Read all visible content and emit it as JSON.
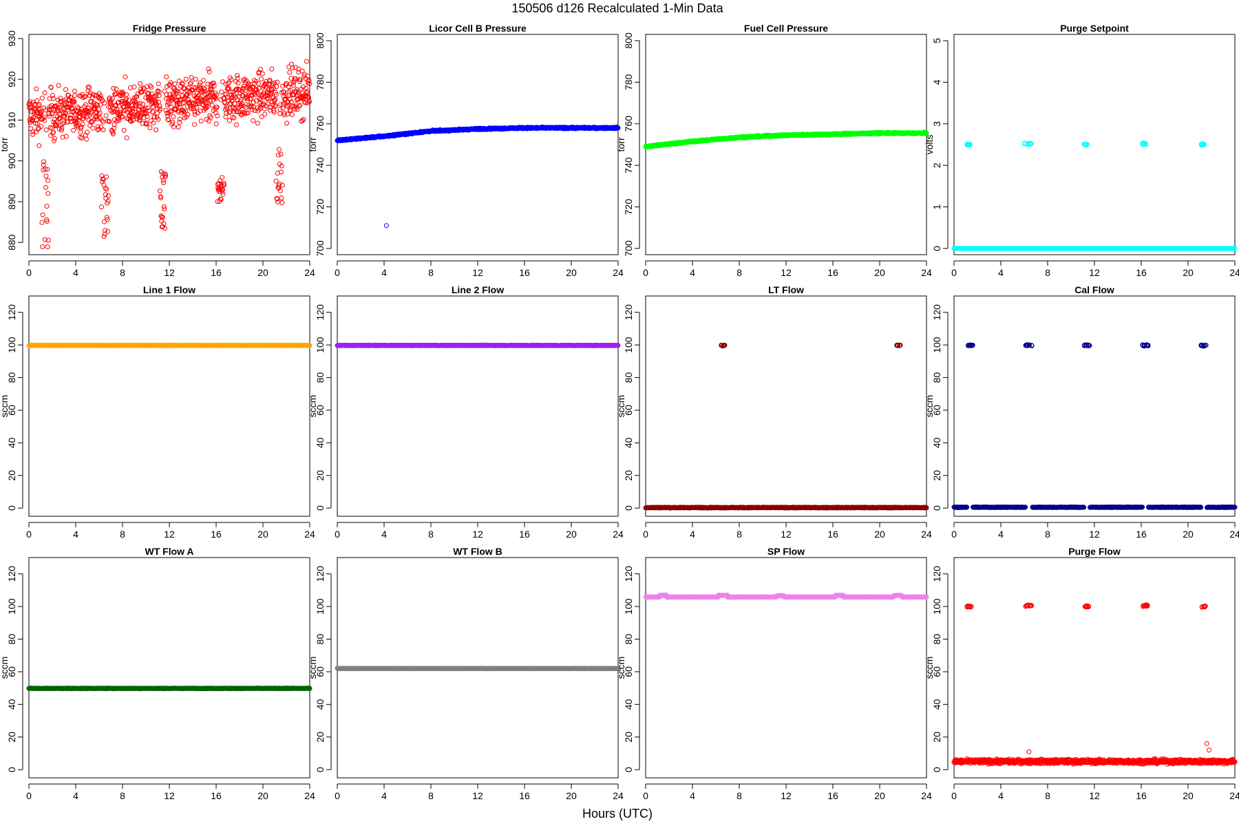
{
  "figure": {
    "title": "150506   d126   Recalculated 1-Min Data",
    "xlabel": "Hours (UTC)"
  },
  "chart_data": [
    {
      "type": "scatter",
      "title": "Fridge Pressure",
      "ylabel": "torr",
      "color": "#ff0000",
      "xlim": [
        0,
        24
      ],
      "ylim": [
        877,
        931
      ],
      "xticks": [
        0,
        4,
        8,
        12,
        16,
        20,
        24
      ],
      "yticks": [
        880,
        890,
        900,
        910,
        920,
        930
      ],
      "pattern": "noise",
      "base_start": 911,
      "base_end": 917,
      "noise": 7,
      "events": [
        {
          "x": [
            1.1,
            1.7
          ],
          "y": [
            878,
            900
          ]
        },
        {
          "x": [
            6.2,
            6.8
          ],
          "y": [
            881,
            897
          ]
        },
        {
          "x": [
            11.2,
            11.7
          ],
          "y": [
            882,
            899
          ]
        },
        {
          "x": [
            16.1,
            16.7
          ],
          "y": [
            890,
            896
          ]
        },
        {
          "x": [
            21.1,
            21.7
          ],
          "y": [
            888,
            904
          ]
        }
      ]
    },
    {
      "type": "scatter",
      "title": "Licor Cell B Pressure",
      "ylabel": "torr",
      "color": "#0000ff",
      "xlim": [
        0,
        24
      ],
      "ylim": [
        697,
        803
      ],
      "xticks": [
        0,
        4,
        8,
        12,
        16,
        20,
        24
      ],
      "yticks": [
        700,
        720,
        740,
        760,
        780,
        800
      ],
      "pattern": "curve",
      "curve": {
        "x": [
          0,
          4,
          8,
          12,
          16,
          20,
          24
        ],
        "y": [
          752,
          754,
          756.5,
          757.5,
          758,
          758,
          758
        ]
      },
      "noise": 0.6,
      "outliers": [
        {
          "x": 4.2,
          "y": 711
        }
      ]
    },
    {
      "type": "scatter",
      "title": "Fuel Cell Pressure",
      "ylabel": "torr",
      "color": "#00ff00",
      "xlim": [
        0,
        24
      ],
      "ylim": [
        697,
        803
      ],
      "xticks": [
        0,
        4,
        8,
        12,
        16,
        20,
        24
      ],
      "yticks": [
        700,
        720,
        740,
        760,
        780,
        800
      ],
      "pattern": "curve",
      "curve": {
        "x": [
          0,
          4,
          8,
          12,
          16,
          20,
          24
        ],
        "y": [
          749,
          751.5,
          753.5,
          754.5,
          755,
          755.5,
          755.5
        ]
      },
      "noise": 0.6
    },
    {
      "type": "scatter",
      "title": "Purge Setpoint",
      "ylabel": "volts",
      "color": "#00ffff",
      "xlim": [
        0,
        24
      ],
      "ylim": [
        -0.15,
        5.15
      ],
      "xticks": [
        0,
        4,
        8,
        12,
        16,
        20,
        24
      ],
      "yticks": [
        0,
        1,
        2,
        3,
        4,
        5
      ],
      "pattern": "baseline",
      "base": 0,
      "noise": 0,
      "clusters": [
        {
          "x": [
            1.1,
            1.4
          ],
          "y": 2.5
        },
        {
          "x": [
            6.0,
            6.6
          ],
          "y": 2.52
        },
        {
          "x": [
            11.1,
            11.4
          ],
          "y": 2.5
        },
        {
          "x": [
            16.1,
            16.6
          ],
          "y": 2.52
        },
        {
          "x": [
            21.1,
            21.4
          ],
          "y": 2.5
        }
      ]
    },
    {
      "type": "scatter",
      "title": "Line 1 Flow",
      "ylabel": "sccm",
      "color": "#ffa500",
      "xlim": [
        0,
        24
      ],
      "ylim": [
        -5,
        130
      ],
      "xticks": [
        0,
        4,
        8,
        12,
        16,
        20,
        24
      ],
      "yticks": [
        0,
        20,
        40,
        60,
        80,
        100,
        120
      ],
      "pattern": "baseline",
      "base": 99.7,
      "noise": 0.2
    },
    {
      "type": "scatter",
      "title": "Line 2 Flow",
      "ylabel": "sccm",
      "color": "#a020f0",
      "xlim": [
        0,
        24
      ],
      "ylim": [
        -5,
        130
      ],
      "xticks": [
        0,
        4,
        8,
        12,
        16,
        20,
        24
      ],
      "yticks": [
        0,
        20,
        40,
        60,
        80,
        100,
        120
      ],
      "pattern": "baseline",
      "base": 99.7,
      "noise": 0.3
    },
    {
      "type": "scatter",
      "title": "LT Flow",
      "ylabel": "sccm",
      "color": "#8b0000",
      "xlim": [
        0,
        24
      ],
      "ylim": [
        -5,
        130
      ],
      "xticks": [
        0,
        4,
        8,
        12,
        16,
        20,
        24
      ],
      "yticks": [
        0,
        20,
        40,
        60,
        80,
        100,
        120
      ],
      "pattern": "baseline",
      "base": 0.3,
      "noise": 0.4,
      "clusters": [
        {
          "x": [
            6.4,
            6.8
          ],
          "y": 99.8
        },
        {
          "x": [
            21.4,
            21.8
          ],
          "y": 99.8
        }
      ]
    },
    {
      "type": "scatter",
      "title": "Cal Flow",
      "ylabel": "sccm",
      "color": "#00008b",
      "xlim": [
        0,
        24
      ],
      "ylim": [
        -5,
        130
      ],
      "xticks": [
        0,
        4,
        8,
        12,
        16,
        20,
        24
      ],
      "yticks": [
        0,
        20,
        40,
        60,
        80,
        100,
        120
      ],
      "pattern": "baseline",
      "base": 0.5,
      "noise": 0.3,
      "gaps": [
        [
          1.1,
          1.6
        ],
        [
          6.1,
          6.7
        ],
        [
          11.1,
          11.6
        ],
        [
          16.1,
          16.6
        ],
        [
          21.1,
          21.6
        ]
      ],
      "clusters": [
        {
          "x": [
            1.1,
            1.6
          ],
          "y": 99.8
        },
        {
          "x": [
            6.1,
            6.7
          ],
          "y": 99.8
        },
        {
          "x": [
            11.1,
            11.6
          ],
          "y": 99.8
        },
        {
          "x": [
            16.1,
            16.6
          ],
          "y": 99.8
        },
        {
          "x": [
            21.1,
            21.6
          ],
          "y": 99.8
        }
      ]
    },
    {
      "type": "scatter",
      "title": "WT Flow A",
      "ylabel": "sccm",
      "color": "#006400",
      "xlim": [
        0,
        24
      ],
      "ylim": [
        -5,
        130
      ],
      "xticks": [
        0,
        4,
        8,
        12,
        16,
        20,
        24
      ],
      "yticks": [
        0,
        20,
        40,
        60,
        80,
        100,
        120
      ],
      "pattern": "baseline",
      "base": 49.8,
      "noise": 0.3
    },
    {
      "type": "scatter",
      "title": "WT Flow B",
      "ylabel": "sccm",
      "color": "#808080",
      "xlim": [
        0,
        24
      ],
      "ylim": [
        -5,
        130
      ],
      "xticks": [
        0,
        4,
        8,
        12,
        16,
        20,
        24
      ],
      "yticks": [
        0,
        20,
        40,
        60,
        80,
        100,
        120
      ],
      "pattern": "baseline",
      "base": 62,
      "noise": 0.2
    },
    {
      "type": "scatter",
      "title": "SP Flow",
      "ylabel": "sccm",
      "color": "#ee82ee",
      "xlim": [
        0,
        24
      ],
      "ylim": [
        -5,
        130
      ],
      "xticks": [
        0,
        4,
        8,
        12,
        16,
        20,
        24
      ],
      "yticks": [
        0,
        20,
        40,
        60,
        80,
        100,
        120
      ],
      "pattern": "baseline",
      "base": 105.8,
      "noise": 0.3,
      "bumps": [
        {
          "x": [
            1.2,
            1.8
          ],
          "y": 106.8
        },
        {
          "x": [
            6.2,
            7.0
          ],
          "y": 106.8
        },
        {
          "x": [
            11.2,
            11.8
          ],
          "y": 106.6
        },
        {
          "x": [
            16.2,
            16.9
          ],
          "y": 106.8
        },
        {
          "x": [
            21.2,
            21.9
          ],
          "y": 106.8
        }
      ]
    },
    {
      "type": "scatter",
      "title": "Purge Flow",
      "ylabel": "sccm",
      "color": "#ff0000",
      "xlim": [
        0,
        24
      ],
      "ylim": [
        -5,
        130
      ],
      "xticks": [
        0,
        4,
        8,
        12,
        16,
        20,
        24
      ],
      "yticks": [
        0,
        20,
        40,
        60,
        80,
        100,
        120
      ],
      "pattern": "baseline",
      "base": 5,
      "noise": 2.2,
      "clusters": [
        {
          "x": [
            1.1,
            1.5
          ],
          "y": 100
        },
        {
          "x": [
            6.1,
            6.7
          ],
          "y": 100.5
        },
        {
          "x": [
            11.1,
            11.5
          ],
          "y": 100
        },
        {
          "x": [
            16.1,
            16.6
          ],
          "y": 100.5
        },
        {
          "x": [
            21.1,
            21.5
          ],
          "y": 100
        }
      ],
      "spikes": [
        {
          "x": 6.4,
          "y": 11
        },
        {
          "x": 21.6,
          "y": 16
        },
        {
          "x": 21.8,
          "y": 12
        }
      ]
    }
  ]
}
